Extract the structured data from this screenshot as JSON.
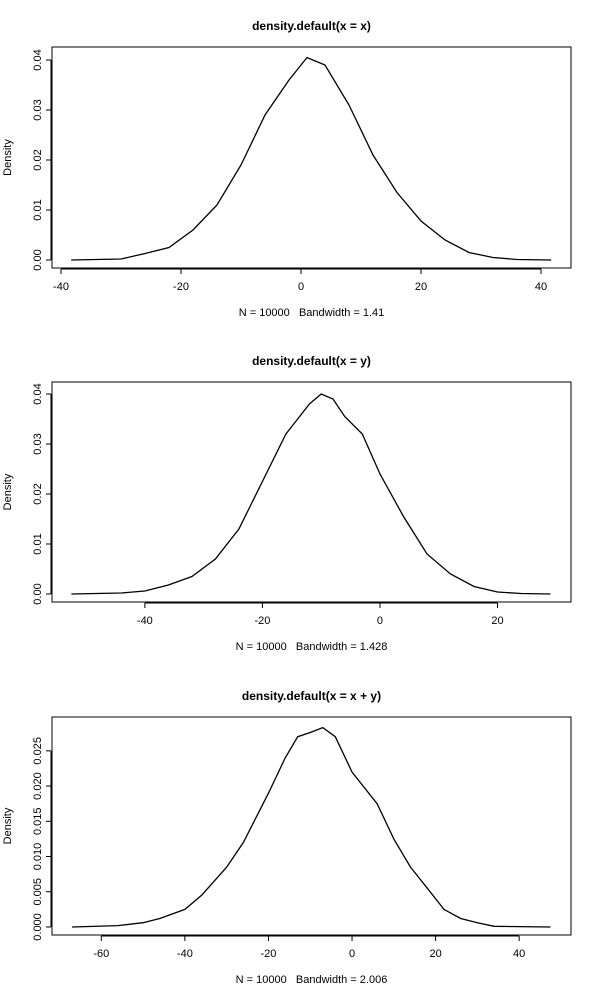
{
  "chart_data": [
    {
      "type": "line",
      "title": "density.default(x = x)",
      "x_label": "N = 10000   Bandwidth = 1.41",
      "y_label": "Density",
      "color": "#000000",
      "x": [
        -38.3,
        -30,
        -26,
        -22,
        -18,
        -14,
        -10,
        -6,
        -2,
        1,
        4,
        8,
        12,
        16,
        20,
        24,
        28,
        32,
        36,
        41.7
      ],
      "values": [
        0,
        0.0002,
        0.0013,
        0.0025,
        0.006,
        0.011,
        0.019,
        0.029,
        0.036,
        0.0405,
        0.039,
        0.031,
        0.021,
        0.0135,
        0.0078,
        0.004,
        0.0015,
        0.0005,
        0.0001,
        0
      ],
      "xlim": [
        -41.5,
        45
      ],
      "ylim": [
        -0.0016,
        0.0426
      ],
      "xticks": [
        -40,
        -20,
        0,
        20,
        40
      ],
      "yticks": [
        {
          "value": 0,
          "label": "0.00"
        },
        0.01,
        0.02,
        0.03,
        0.04
      ]
    },
    {
      "type": "line",
      "title": "density.default(x = y)",
      "x_label": "N = 10000   Bandwidth = 1.428",
      "y_label": "Density",
      "color": "#000000",
      "x": [
        -52.5,
        -44,
        -40,
        -36,
        -32,
        -28,
        -24,
        -20,
        -16,
        -14,
        -12,
        -10,
        -8,
        -6,
        -3,
        0,
        4,
        8,
        12,
        16,
        20,
        24,
        29
      ],
      "values": [
        0,
        0.0002,
        0.0006,
        0.0018,
        0.0035,
        0.007,
        0.013,
        0.0225,
        0.032,
        0.035,
        0.038,
        0.04,
        0.039,
        0.0355,
        0.032,
        0.024,
        0.0155,
        0.008,
        0.004,
        0.0015,
        0.0004,
        0.0001,
        0
      ],
      "xlim": [
        -55.8,
        32.5
      ],
      "ylim": [
        -0.0016,
        0.0424
      ],
      "xticks": [
        -40,
        -20,
        0,
        20
      ],
      "yticks": [
        {
          "value": 0,
          "label": "0.00"
        },
        0.01,
        0.02,
        0.03,
        0.04
      ]
    },
    {
      "type": "line",
      "title": "density.default(x = x + y)",
      "x_label": "N = 10000   Bandwidth = 2.006",
      "y_label": "Density",
      "color": "#000000",
      "x": [
        -67,
        -56,
        -50,
        -46,
        -40,
        -36,
        -30,
        -26,
        -20,
        -16,
        -13,
        -10,
        -7,
        -4,
        0,
        6,
        10,
        14,
        18,
        22,
        26,
        30,
        34,
        47.5
      ],
      "values": [
        0,
        0.0002,
        0.0006,
        0.0012,
        0.0025,
        0.0045,
        0.0085,
        0.012,
        0.019,
        0.024,
        0.027,
        0.0276,
        0.0283,
        0.027,
        0.022,
        0.0175,
        0.0125,
        0.0085,
        0.0055,
        0.0025,
        0.0012,
        0.0006,
        0.0001,
        0
      ],
      "xlim": [
        -71.8,
        52.4
      ],
      "ylim": [
        -0.00114,
        0.0298
      ],
      "xticks": [
        -60,
        -40,
        -20,
        0,
        20,
        40
      ],
      "yticks": [
        {
          "value": 0,
          "label": "0.000"
        },
        0.005,
        {
          "value": 0.01,
          "label": "0.010"
        },
        0.015,
        {
          "value": 0.02,
          "label": "0.020"
        },
        0.025
      ]
    }
  ]
}
